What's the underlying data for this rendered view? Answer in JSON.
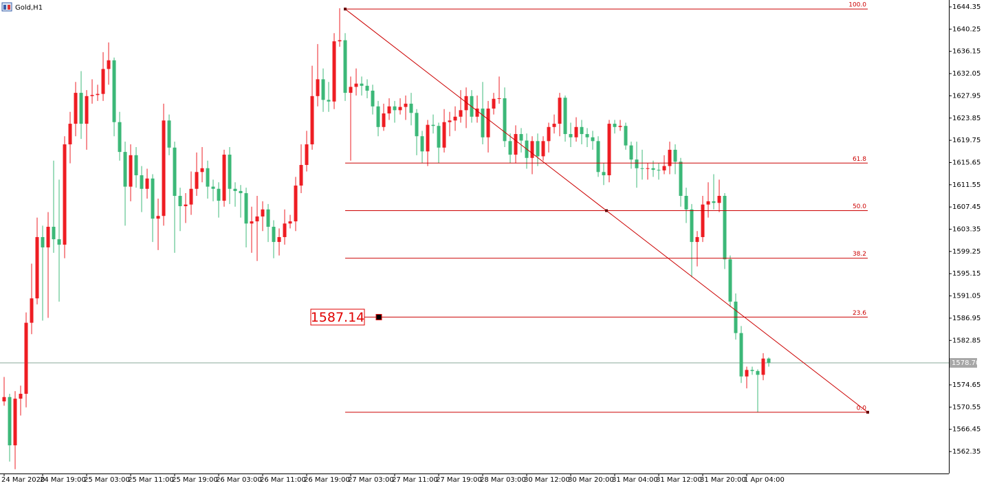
{
  "chart_data": {
    "type": "candlestick",
    "title": "Gold,H1",
    "up_color": "#ee1d23",
    "down_color": "#3cb878",
    "ylim": [
      1558.3,
      1645.62
    ],
    "yticks": [
      1644.35,
      1640.25,
      1636.15,
      1632.05,
      1627.95,
      1623.85,
      1619.75,
      1615.65,
      1611.55,
      1607.45,
      1603.35,
      1599.25,
      1595.15,
      1591.05,
      1586.95,
      1582.85,
      1574.65,
      1570.55,
      1566.45,
      1562.35
    ],
    "categories": [
      "24 Mar 2020",
      null,
      null,
      null,
      null,
      null,
      null,
      "24 Mar 19:00",
      null,
      null,
      null,
      null,
      null,
      null,
      null,
      "25 Mar 03:00",
      null,
      null,
      null,
      null,
      null,
      null,
      null,
      "25 Mar 11:00",
      null,
      null,
      null,
      null,
      null,
      null,
      null,
      "25 Mar 19:00",
      null,
      null,
      null,
      null,
      null,
      null,
      null,
      "26 Mar 03:00",
      null,
      null,
      null,
      null,
      null,
      null,
      null,
      "26 Mar 11:00",
      null,
      null,
      null,
      null,
      null,
      null,
      null,
      "26 Mar 19:00",
      null,
      null,
      null,
      null,
      null,
      null,
      null,
      "27 Mar 03:00",
      null,
      null,
      null,
      null,
      null,
      null,
      null,
      "27 Mar 11:00",
      null,
      null,
      null,
      null,
      null,
      null,
      null,
      "27 Mar 19:00",
      null,
      null,
      null,
      null,
      null,
      null,
      null,
      "28 Mar 03:00",
      null,
      null,
      null,
      null,
      null,
      null,
      null,
      "30 Mar 12:00",
      null,
      null,
      null,
      null,
      null,
      null,
      null,
      "30 Mar 20:00",
      null,
      null,
      null,
      null,
      null,
      null,
      null,
      "31 Mar 04:00",
      null,
      null,
      null,
      null,
      null,
      null,
      null,
      "31 Mar 12:00",
      null,
      null,
      null,
      null,
      null,
      null,
      null,
      "31 Mar 20:00",
      null,
      null,
      null,
      null,
      null,
      null,
      null,
      "1 Apr 04:00",
      null,
      null,
      null,
      null
    ],
    "open": [
      1571.6,
      1572.4,
      1563.5,
      1572.1,
      1573.0,
      1586.1,
      1590.6,
      1601.9,
      1600.0,
      1603.8,
      1601.5,
      1600.5,
      1619.0,
      1622.8,
      1628.5,
      1622.8,
      1627.9,
      1628.1,
      1628.3,
      1632.9,
      1634.5,
      1623.1,
      1617.6,
      1611.2,
      1617.0,
      1613.3,
      1610.8,
      1612.7,
      1605.3,
      1605.8,
      1623.4,
      1618.4,
      1609.5,
      1607.6,
      1607.9,
      1610.8,
      1613.9,
      1614.6,
      1611.2,
      1610.8,
      1608.6,
      1617.1,
      1610.8,
      1610.4,
      1610.0,
      1604.4,
      1604.8,
      1605.7,
      1607.0,
      1603.8,
      1601.0,
      1601.9,
      1604.4,
      1604.8,
      1611.4,
      1615.2,
      1619.0,
      1627.9,
      1631.0,
      1627.2,
      1626.9,
      1638.0,
      1638.2,
      1628.5,
      1629.6,
      1630.2,
      1629.8,
      1628.9,
      1626.0,
      1622.2,
      1624.7,
      1626.0,
      1625.3,
      1625.9,
      1626.5,
      1624.8,
      1620.5,
      1617.7,
      1622.6,
      1622.4,
      1618.4,
      1623.1,
      1623.4,
      1624.1,
      1625.3,
      1627.9,
      1624.1,
      1625.6,
      1620.3,
      1625.6,
      1627.4,
      1627.5,
      1619.6,
      1617.1,
      1620.9,
      1619.7,
      1616.5,
      1619.6,
      1616.8,
      1619.6,
      1622.2,
      1622.8,
      1627.6,
      1620.9,
      1620.3,
      1622.2,
      1620.9,
      1620.3,
      1619.6,
      1613.9,
      1613.3,
      1622.8,
      1622.2,
      1622.4,
      1618.8,
      1616.2,
      1614.6,
      1614.5,
      1614.6,
      1614.3,
      1614.2,
      1615.0,
      1618.0,
      1615.8,
      1609.5,
      1607.0,
      1601.0,
      1601.9,
      1607.9,
      1608.5,
      1608.2,
      1609.5,
      1597.8,
      1590.0,
      1584.2,
      1576.2,
      1577.4,
      1577.2,
      1576.5,
      1579.5
    ],
    "high": [
      1576.1,
      1573.0,
      1573.5,
      1574.5,
      1588.0,
      1597.0,
      1605.5,
      1604.0,
      1606.5,
      1616.0,
      1612.5,
      1620.5,
      1625.0,
      1630.5,
      1632.5,
      1629.0,
      1631.0,
      1630.0,
      1636.0,
      1637.8,
      1635.0,
      1625.0,
      1619.5,
      1619.0,
      1618.5,
      1615.0,
      1614.5,
      1613.5,
      1609.0,
      1626.5,
      1624.5,
      1619.5,
      1611.0,
      1610.0,
      1614.0,
      1617.5,
      1618.5,
      1616.0,
      1612.5,
      1612.0,
      1618.0,
      1618.5,
      1612.0,
      1611.5,
      1611.0,
      1607.5,
      1609.5,
      1608.5,
      1608.0,
      1605.0,
      1603.5,
      1607.0,
      1606.0,
      1613.0,
      1619.0,
      1621.5,
      1633.5,
      1637.5,
      1633.0,
      1630.5,
      1639.5,
      1644.1,
      1639.5,
      1631.5,
      1633.0,
      1631.5,
      1631.0,
      1630.0,
      1627.0,
      1626.5,
      1627.5,
      1627.0,
      1627.5,
      1628.0,
      1628.5,
      1625.5,
      1621.5,
      1623.5,
      1624.5,
      1623.0,
      1625.5,
      1625.0,
      1626.0,
      1629.0,
      1629.5,
      1629.0,
      1628.0,
      1630.5,
      1627.0,
      1628.5,
      1631.5,
      1629.5,
      1621.0,
      1622.5,
      1622.0,
      1621.0,
      1620.5,
      1621.0,
      1620.5,
      1623.0,
      1624.5,
      1628.5,
      1628.0,
      1623.0,
      1624.0,
      1623.5,
      1622.0,
      1621.5,
      1620.5,
      1615.5,
      1623.5,
      1623.5,
      1623.5,
      1623.0,
      1619.5,
      1619.5,
      1618.0,
      1615.5,
      1616.0,
      1615.5,
      1617.0,
      1619.5,
      1619.0,
      1616.5,
      1611.0,
      1608.0,
      1603.0,
      1609.5,
      1612.0,
      1613.5,
      1612.5,
      1610.0,
      1598.5,
      1591.5,
      1585.5,
      1578.0,
      1578.0,
      1577.5,
      1580.5,
      1579.7
    ],
    "low": [
      1570.8,
      1560.5,
      1559.1,
      1569.0,
      1570.5,
      1584.0,
      1589.5,
      1586.5,
      1587.0,
      1599.0,
      1590.0,
      1598.0,
      1615.5,
      1620.5,
      1620.0,
      1618.0,
      1626.5,
      1627.0,
      1627.0,
      1630.0,
      1620.5,
      1616.0,
      1604.0,
      1608.5,
      1611.0,
      1606.5,
      1609.0,
      1601.0,
      1599.5,
      1604.0,
      1617.0,
      1599.0,
      1603.0,
      1604.5,
      1606.0,
      1609.5,
      1612.0,
      1609.0,
      1608.5,
      1605.5,
      1607.5,
      1608.0,
      1607.5,
      1605.5,
      1600.0,
      1599.0,
      1597.5,
      1603.0,
      1601.0,
      1598.0,
      1598.5,
      1600.5,
      1603.5,
      1603.0,
      1610.0,
      1614.0,
      1618.0,
      1626.0,
      1625.0,
      1625.0,
      1625.5,
      1637.0,
      1627.0,
      1616.0,
      1628.0,
      1628.0,
      1627.5,
      1624.5,
      1620.5,
      1621.5,
      1623.5,
      1623.0,
      1624.5,
      1623.5,
      1622.5,
      1617.0,
      1615.5,
      1615.0,
      1621.0,
      1615.5,
      1617.5,
      1620.5,
      1621.5,
      1623.0,
      1622.0,
      1623.0,
      1623.0,
      1619.0,
      1617.5,
      1624.5,
      1626.5,
      1618.5,
      1615.5,
      1615.5,
      1617.5,
      1614.5,
      1613.5,
      1615.0,
      1616.0,
      1617.5,
      1621.0,
      1620.5,
      1619.5,
      1618.5,
      1619.5,
      1619.0,
      1618.5,
      1618.0,
      1613.0,
      1611.5,
      1612.0,
      1621.0,
      1621.5,
      1618.0,
      1614.5,
      1611.0,
      1612.5,
      1612.5,
      1613.0,
      1612.5,
      1613.5,
      1613.5,
      1613.5,
      1607.5,
      1604.5,
      1594.5,
      1596.5,
      1601.0,
      1605.5,
      1607.0,
      1606.5,
      1596.0,
      1589.0,
      1583.0,
      1575.0,
      1574.0,
      1576.5,
      1569.6,
      1575.5,
      1578.0
    ],
    "close": [
      1572.4,
      1563.5,
      1572.1,
      1573.0,
      1586.1,
      1590.6,
      1601.9,
      1600.0,
      1603.8,
      1601.5,
      1600.5,
      1619.0,
      1622.8,
      1628.5,
      1622.8,
      1627.9,
      1628.1,
      1628.3,
      1632.9,
      1634.5,
      1623.1,
      1617.6,
      1611.2,
      1617.0,
      1613.3,
      1610.8,
      1612.7,
      1605.3,
      1605.8,
      1623.4,
      1618.4,
      1609.5,
      1607.6,
      1607.9,
      1610.8,
      1613.9,
      1614.6,
      1611.2,
      1610.8,
      1608.6,
      1617.1,
      1610.8,
      1610.4,
      1610.0,
      1604.4,
      1604.8,
      1605.7,
      1607.0,
      1603.8,
      1601.0,
      1601.9,
      1604.4,
      1604.8,
      1611.4,
      1615.2,
      1619.0,
      1627.9,
      1631.0,
      1627.2,
      1626.9,
      1638.0,
      1638.2,
      1628.5,
      1629.6,
      1630.2,
      1629.8,
      1628.9,
      1626.0,
      1622.2,
      1624.7,
      1626.0,
      1625.3,
      1625.9,
      1626.5,
      1624.8,
      1620.5,
      1617.7,
      1622.6,
      1622.4,
      1618.4,
      1623.1,
      1623.4,
      1624.1,
      1625.3,
      1627.9,
      1624.1,
      1625.6,
      1620.3,
      1625.6,
      1627.4,
      1627.5,
      1619.6,
      1617.1,
      1620.9,
      1619.7,
      1616.5,
      1619.6,
      1616.8,
      1619.6,
      1622.2,
      1622.8,
      1627.6,
      1620.9,
      1620.3,
      1622.2,
      1620.9,
      1620.3,
      1619.6,
      1613.9,
      1613.3,
      1622.8,
      1622.2,
      1622.4,
      1618.8,
      1616.2,
      1614.6,
      1614.5,
      1614.6,
      1614.3,
      1614.2,
      1615.0,
      1618.0,
      1615.8,
      1609.5,
      1607.0,
      1601.0,
      1601.9,
      1607.9,
      1608.5,
      1608.2,
      1609.5,
      1597.8,
      1590.0,
      1584.2,
      1576.2,
      1577.4,
      1577.2,
      1576.5,
      1579.5,
      1578.7
    ],
    "current_price": {
      "value": 1578.7,
      "label": "1578.70"
    },
    "fibonacci": {
      "color": "#cc0000",
      "from": {
        "index": 62,
        "price": 1643.95
      },
      "to": {
        "index": 157,
        "price": 1569.6
      },
      "levels": [
        {
          "value": 100,
          "label": "100.0"
        },
        61.8,
        {
          "value": 50,
          "label": "50.0"
        },
        38.2,
        23.6,
        {
          "value": 0,
          "label": "0.0"
        }
      ]
    },
    "price_label": 1587.14
  }
}
